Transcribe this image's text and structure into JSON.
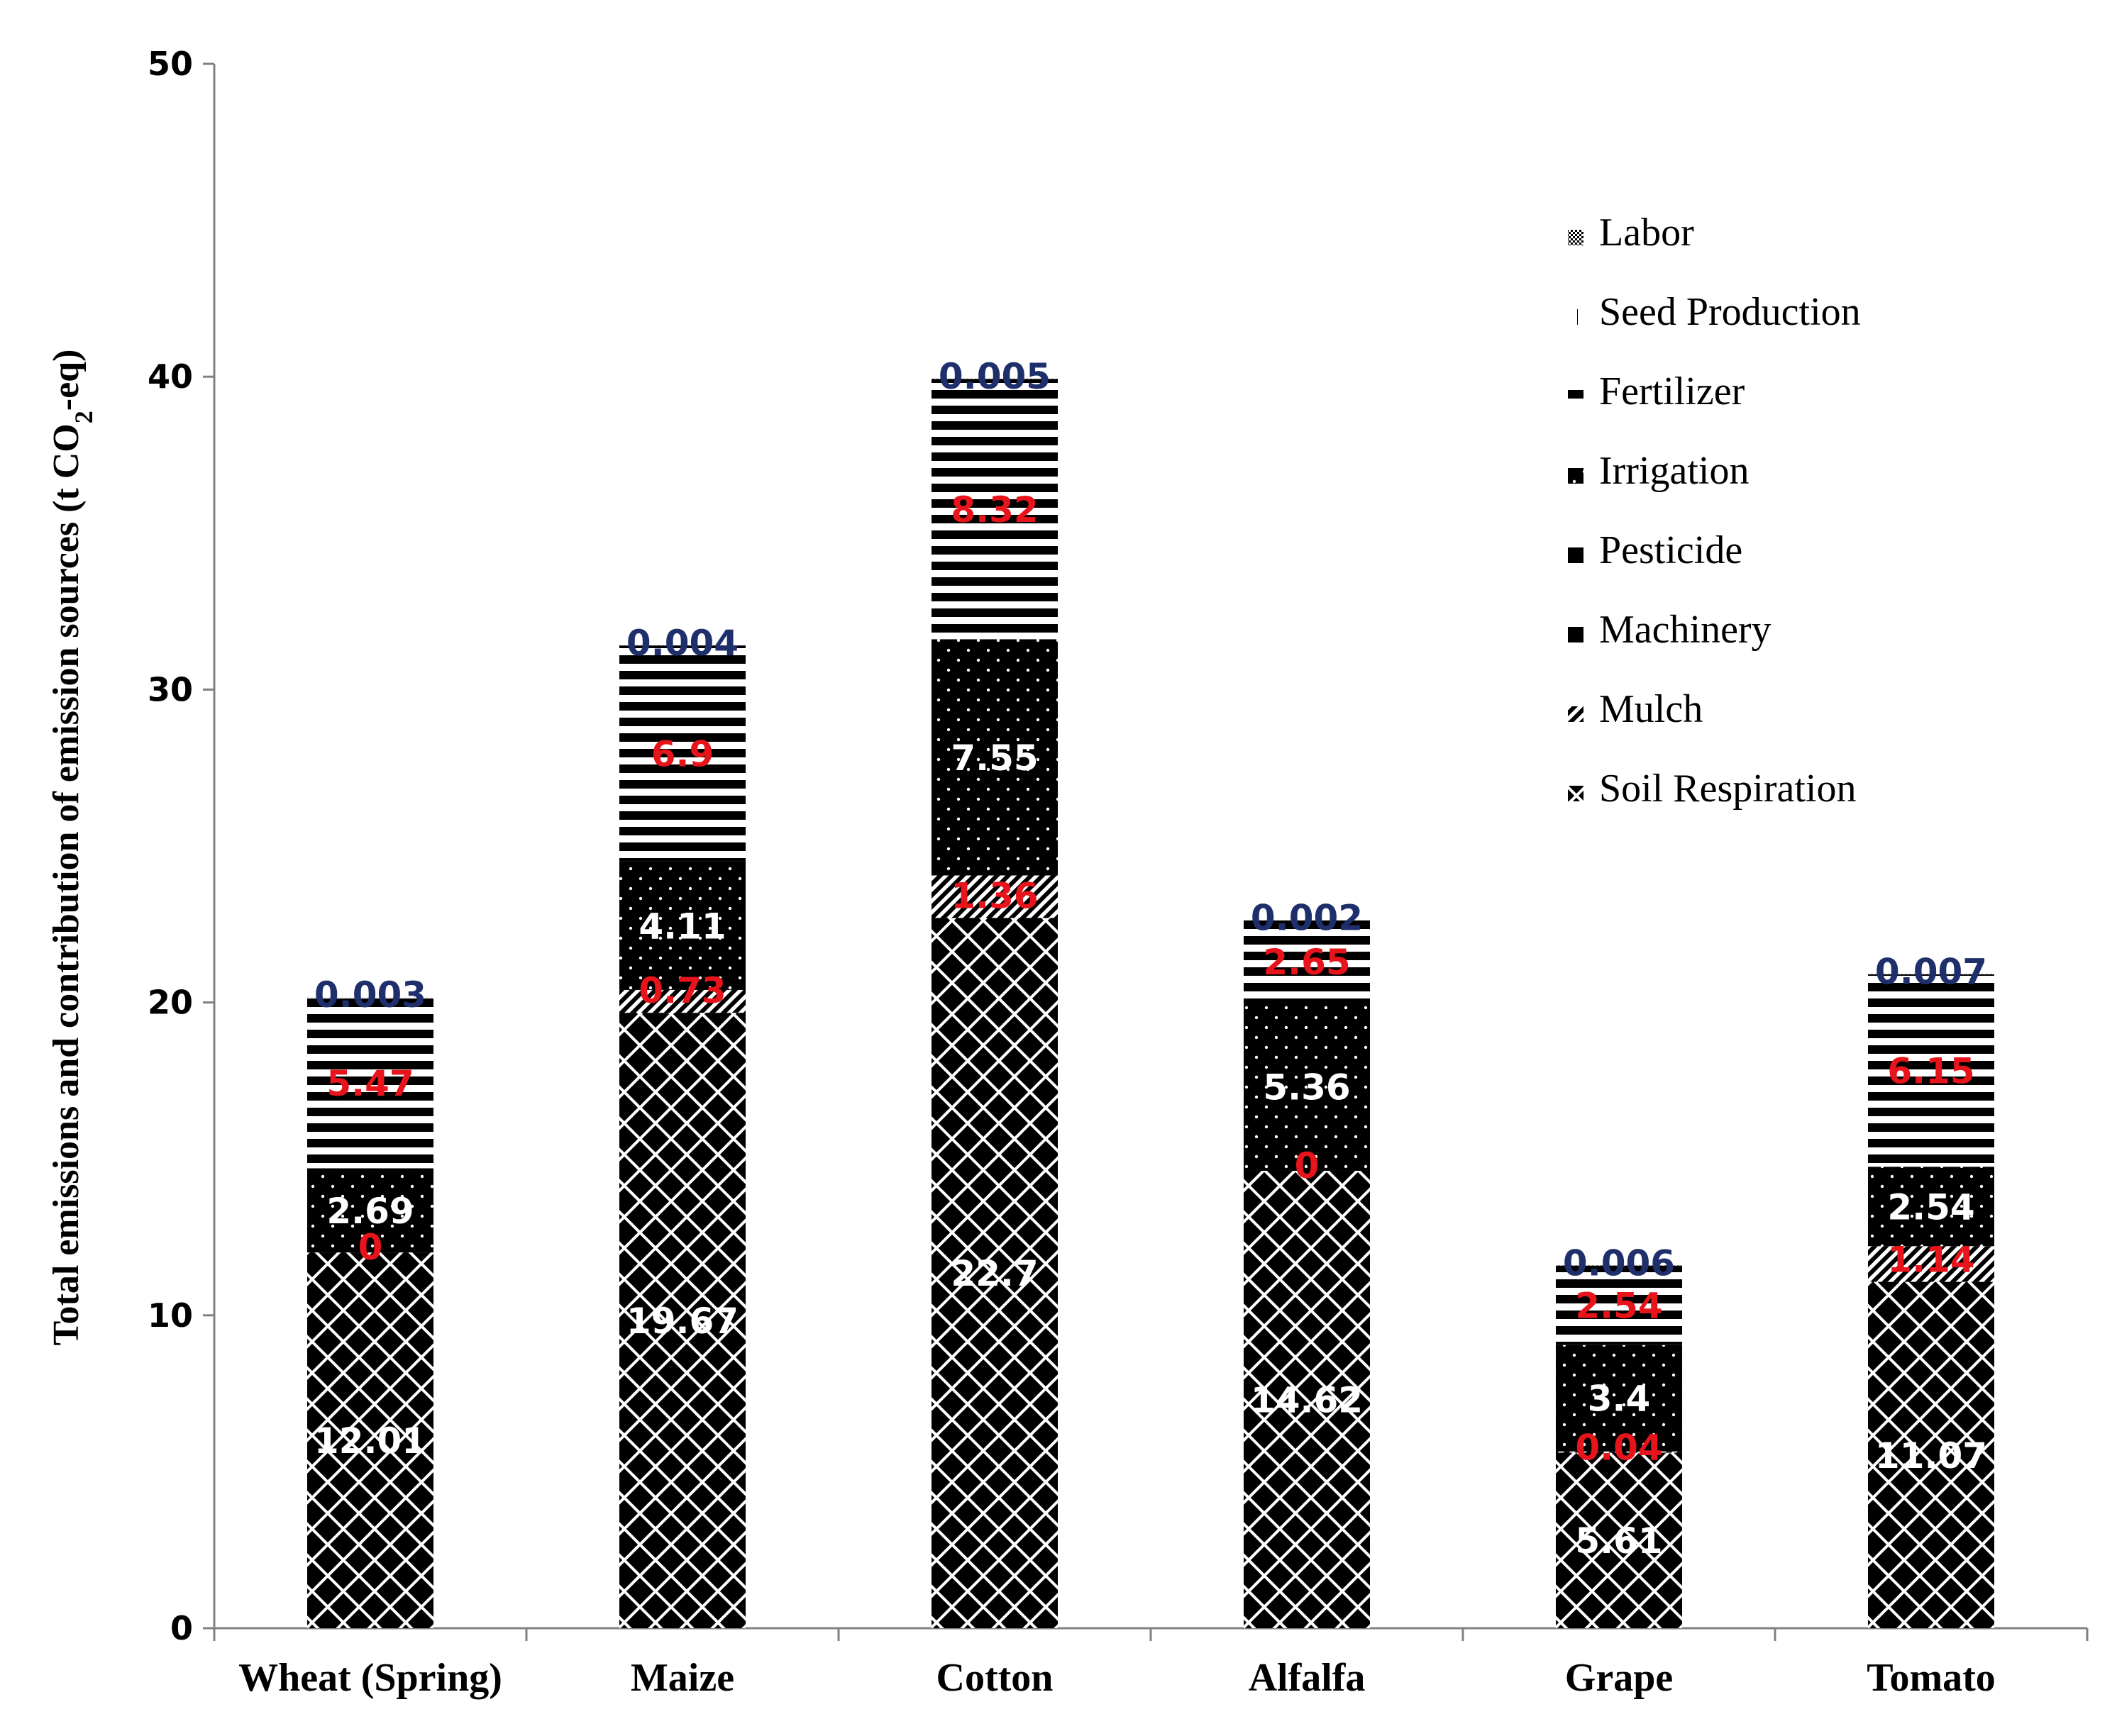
{
  "chart_data": {
    "type": "stacked-bar",
    "title": "",
    "xlabel": "",
    "ylabel_parts": [
      "Total emissions and contribution of emission sources (t CO",
      "2",
      "-eq)"
    ],
    "ylim": [
      0,
      50
    ],
    "yticks": [
      0,
      10,
      20,
      30,
      40,
      50
    ],
    "categories": [
      "Wheat (Spring)",
      "Maize",
      "Cotton",
      "Alfalfa",
      "Grape",
      "Tomato"
    ],
    "legend_order": [
      "Labor",
      "Seed Production",
      "Fertilizer",
      "Irrigation",
      "Pesticide",
      "Machinery",
      "Mulch",
      "Soil Respiration"
    ],
    "series": [
      {
        "name": "Soil Respiration",
        "pattern": "crosshatch",
        "values": [
          12.01,
          19.67,
          22.7,
          14.62,
          5.61,
          11.07
        ],
        "labels": [
          "12.01",
          "19.67",
          "22.7",
          "14.62",
          "5.61",
          "11.07"
        ],
        "label_color": "#ffffff",
        "label_font": "serif"
      },
      {
        "name": "Mulch",
        "pattern": "diagonal",
        "values": [
          0,
          0.73,
          1.36,
          0,
          0.04,
          1.14
        ],
        "labels": [
          "0",
          "0.73",
          "1.36",
          "0",
          "0.04",
          "1.14"
        ],
        "label_color": "#e8141b",
        "label_font": "sans"
      },
      {
        "name": "Machinery",
        "pattern": "solid-black",
        "values": [
          0,
          0,
          0,
          0,
          0,
          0
        ],
        "labels": [],
        "label_color": "#ffffff",
        "label_font": "sans"
      },
      {
        "name": "Pesticide",
        "pattern": "solid-black",
        "values": [
          0,
          0,
          0,
          0,
          0,
          0
        ],
        "labels": [],
        "label_color": "#ffffff",
        "label_font": "sans"
      },
      {
        "name": "Irrigation",
        "pattern": "dots",
        "values": [
          2.69,
          4.11,
          7.55,
          5.36,
          3.4,
          2.54
        ],
        "labels": [
          "2.69",
          "4.11",
          "7.55",
          "5.36",
          "3.4",
          "2.54"
        ],
        "label_color": "#ffffff",
        "label_font": "sans"
      },
      {
        "name": "Fertilizer",
        "pattern": "hstripes",
        "values": [
          5.47,
          6.9,
          8.32,
          2.65,
          2.54,
          6.15
        ],
        "labels": [
          "5.47",
          "6.9",
          "8.32",
          "2.65",
          "2.54",
          "6.15"
        ],
        "label_color": "#e8141b",
        "label_font": "sans"
      },
      {
        "name": "Seed Production",
        "pattern": "vline",
        "values": [
          0,
          0,
          0,
          0,
          0,
          0
        ],
        "labels": [],
        "label_color": "#000000",
        "label_font": "sans"
      },
      {
        "name": "Labor",
        "pattern": "fine",
        "values": [
          0.003,
          0.004,
          0.005,
          0.002,
          0.006,
          0.007
        ],
        "labels": [
          "0.003",
          "0.004",
          "0.005",
          "0.002",
          "0.006",
          "0.007"
        ],
        "label_color": "#1f2f6b",
        "label_font": "sans"
      }
    ],
    "colors": {
      "red_label": "#e8141b",
      "navy_label": "#1f2f6b",
      "bar": "#000000",
      "axis": "#808080"
    },
    "legend_position": "top-right",
    "grid": false
  }
}
